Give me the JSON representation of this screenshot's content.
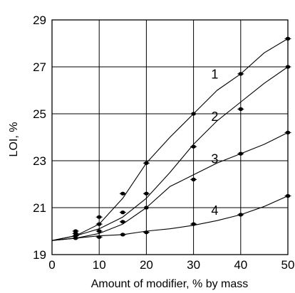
{
  "chart_data": {
    "type": "line",
    "title": "",
    "xlabel": "Amount of modifier, % by mass",
    "ylabel": "LOI, %",
    "xlim": [
      0,
      50
    ],
    "ylim": [
      19,
      29
    ],
    "x_ticks": [
      0,
      10,
      20,
      30,
      40,
      50
    ],
    "y_ticks": [
      19,
      21,
      23,
      25,
      27,
      29
    ],
    "grid": true,
    "series": [
      {
        "name": "1",
        "curve": [
          [
            0,
            19.6
          ],
          [
            5,
            19.8
          ],
          [
            10,
            20.3
          ],
          [
            15,
            21.4
          ],
          [
            20,
            22.9
          ],
          [
            25,
            24.0
          ],
          [
            30,
            25.0
          ],
          [
            35,
            26.0
          ],
          [
            40,
            26.7
          ],
          [
            45,
            27.6
          ],
          [
            50,
            28.2
          ]
        ],
        "points": [
          [
            5,
            20.0
          ],
          [
            10,
            20.6
          ],
          [
            15,
            21.6
          ],
          [
            20,
            22.9
          ],
          [
            30,
            25.0
          ],
          [
            40,
            26.7
          ],
          [
            50,
            28.2
          ]
        ]
      },
      {
        "name": "2",
        "curve": [
          [
            0,
            19.6
          ],
          [
            5,
            19.8
          ],
          [
            10,
            20.1
          ],
          [
            15,
            20.6
          ],
          [
            20,
            21.4
          ],
          [
            25,
            22.5
          ],
          [
            30,
            23.7
          ],
          [
            35,
            24.7
          ],
          [
            40,
            25.5
          ],
          [
            45,
            26.3
          ],
          [
            50,
            27.0
          ]
        ],
        "points": [
          [
            5,
            19.9
          ],
          [
            10,
            20.3
          ],
          [
            15,
            20.8
          ],
          [
            20,
            21.6
          ],
          [
            30,
            23.6
          ],
          [
            40,
            25.2
          ],
          [
            50,
            27.0
          ]
        ]
      },
      {
        "name": "3",
        "curve": [
          [
            0,
            19.6
          ],
          [
            5,
            19.7
          ],
          [
            10,
            19.9
          ],
          [
            15,
            20.3
          ],
          [
            20,
            21.0
          ],
          [
            25,
            21.9
          ],
          [
            30,
            22.4
          ],
          [
            35,
            22.9
          ],
          [
            40,
            23.3
          ],
          [
            45,
            23.7
          ],
          [
            50,
            24.2
          ]
        ],
        "points": [
          [
            5,
            19.8
          ],
          [
            10,
            20.0
          ],
          [
            15,
            20.4
          ],
          [
            20,
            21.0
          ],
          [
            30,
            22.2
          ],
          [
            40,
            23.3
          ],
          [
            50,
            24.2
          ]
        ]
      },
      {
        "name": "4",
        "curve": [
          [
            0,
            19.6
          ],
          [
            5,
            19.7
          ],
          [
            10,
            19.8
          ],
          [
            15,
            19.85
          ],
          [
            20,
            20.0
          ],
          [
            25,
            20.1
          ],
          [
            30,
            20.25
          ],
          [
            35,
            20.45
          ],
          [
            40,
            20.7
          ],
          [
            45,
            21.05
          ],
          [
            50,
            21.5
          ]
        ],
        "points": [
          [
            5,
            19.7
          ],
          [
            10,
            19.75
          ],
          [
            15,
            19.85
          ],
          [
            20,
            19.95
          ],
          [
            30,
            20.3
          ],
          [
            40,
            20.7
          ],
          [
            50,
            21.5
          ]
        ]
      }
    ],
    "series_label_positions": [
      {
        "name": "1",
        "x": 34.5,
        "y": 26.5
      },
      {
        "name": "2",
        "x": 34.5,
        "y": 24.7
      },
      {
        "name": "3",
        "x": 34.5,
        "y": 22.9
      },
      {
        "name": "4",
        "x": 34.5,
        "y": 20.7
      }
    ]
  }
}
